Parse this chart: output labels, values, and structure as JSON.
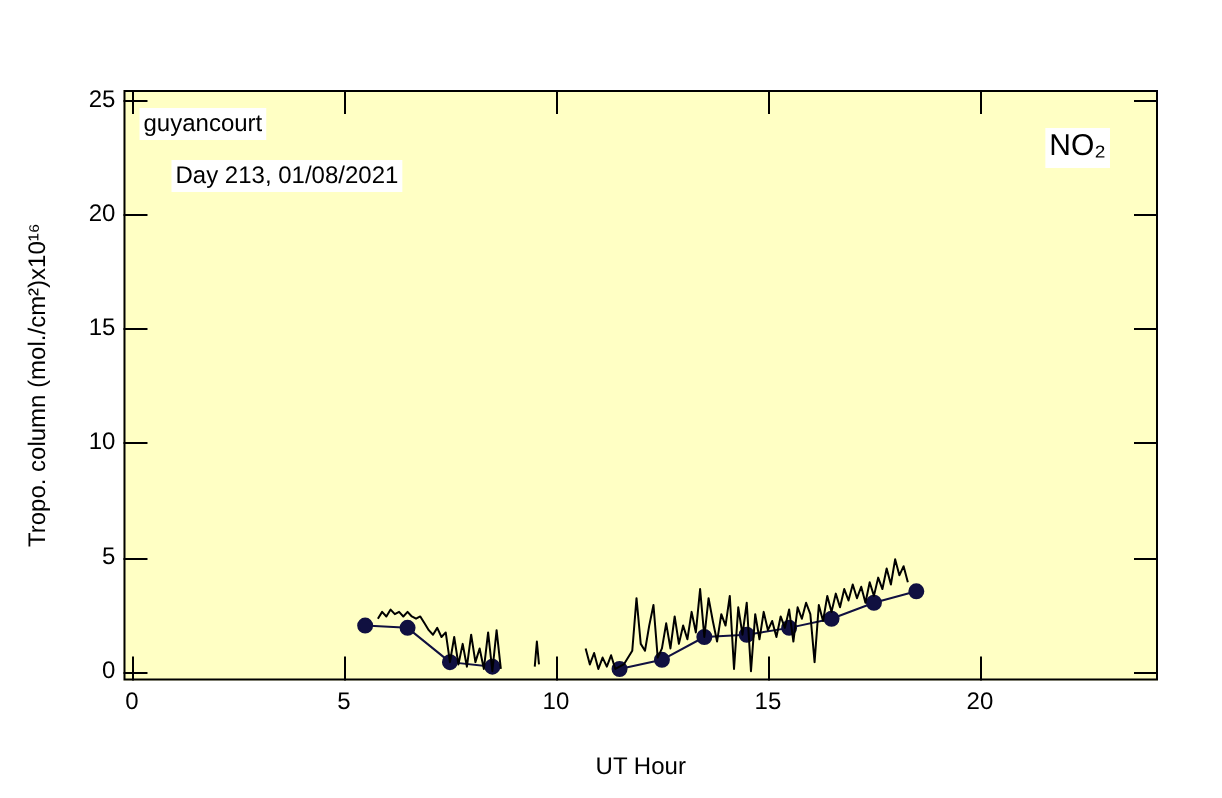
{
  "chart_data": {
    "type": "line",
    "xlabel": "UT Hour",
    "ylabel": "Tropo. column (mol./cm²)x10¹⁶",
    "annotations": [
      "guyancourt",
      "Day 213, 01/08/2021",
      "NO₂"
    ],
    "xlim": [
      -0.2,
      24.2
    ],
    "xticks": [
      0,
      5,
      10,
      15,
      20
    ],
    "ylim": [
      -0.4,
      25.45
    ],
    "yticks": [
      0,
      5,
      10,
      15,
      20,
      25
    ],
    "grid": false,
    "legend": false,
    "line_style": "solid",
    "series": [
      {
        "color": "#000000",
        "marker": "none",
        "x": [
          5.8,
          5.9,
          6.0,
          6.1,
          6.2,
          6.3,
          6.4,
          6.5,
          6.6,
          6.7,
          6.8,
          6.9,
          7.0,
          7.1,
          7.2,
          7.3,
          7.4,
          7.5,
          7.6,
          7.7,
          7.8,
          7.9,
          8.0,
          8.1,
          8.2,
          8.3,
          8.4,
          8.5,
          8.6,
          8.7,
          9.0,
          9.5,
          9.55,
          9.6,
          10.0,
          10.7,
          10.8,
          10.9,
          11.0,
          11.1,
          11.2,
          11.3,
          11.4,
          11.6,
          11.8,
          11.9,
          12.0,
          12.1,
          12.2,
          12.3,
          12.4,
          12.5,
          12.6,
          12.7,
          12.8,
          12.9,
          13.0,
          13.1,
          13.2,
          13.3,
          13.4,
          13.5,
          13.6,
          13.7,
          13.8,
          13.9,
          14.0,
          14.1,
          14.2,
          14.3,
          14.4,
          14.5,
          14.6,
          14.7,
          14.8,
          14.9,
          15.0,
          15.1,
          15.2,
          15.3,
          15.4,
          15.5,
          15.6,
          15.7,
          15.8,
          15.9,
          16.0,
          16.1,
          16.2,
          16.3,
          16.4,
          16.5,
          16.6,
          16.7,
          16.8,
          16.9,
          17.0,
          17.1,
          17.2,
          17.3,
          17.4,
          17.5,
          17.6,
          17.7,
          17.8,
          17.9,
          18.0,
          18.1,
          18.2,
          18.3
        ],
        "values": [
          2.3,
          2.6,
          2.4,
          2.7,
          2.5,
          2.6,
          2.4,
          2.6,
          2.4,
          2.3,
          2.4,
          2.1,
          1.8,
          1.6,
          1.9,
          1.5,
          1.7,
          0.4,
          1.5,
          0.3,
          1.2,
          0.2,
          1.6,
          0.4,
          1.0,
          0.1,
          1.7,
          0.0,
          1.8,
          0.1,
          null,
          0.2,
          1.3,
          0.3,
          null,
          1.0,
          0.3,
          0.8,
          0.1,
          0.6,
          0.2,
          0.7,
          0.1,
          0.3,
          0.9,
          3.2,
          1.2,
          0.9,
          2.0,
          2.9,
          0.6,
          1.0,
          2.1,
          1.0,
          2.4,
          1.2,
          2.0,
          1.4,
          2.6,
          1.7,
          3.6,
          1.5,
          3.2,
          2.2,
          1.3,
          2.5,
          2.0,
          3.3,
          0.1,
          2.8,
          1.6,
          3.0,
          0.0,
          2.5,
          1.4,
          2.6,
          1.8,
          2.2,
          1.5,
          2.4,
          1.9,
          2.7,
          1.3,
          2.8,
          2.3,
          3.0,
          2.5,
          0.4,
          2.9,
          2.2,
          3.3,
          2.6,
          3.4,
          2.8,
          3.6,
          3.1,
          3.8,
          3.2,
          3.7,
          3.0,
          3.9,
          3.3,
          4.1,
          3.6,
          4.5,
          3.8,
          4.9,
          4.2,
          4.6,
          3.9
        ]
      },
      {
        "color": "#101040",
        "marker": "circle",
        "x": [
          5.5,
          6.5,
          7.5,
          8.5,
          10.0,
          11.5,
          12.5,
          13.5,
          14.5,
          15.5,
          16.5,
          17.5,
          18.5
        ],
        "values": [
          2.0,
          1.9,
          0.4,
          0.2,
          null,
          0.1,
          0.5,
          1.5,
          1.6,
          1.9,
          2.3,
          3.0,
          3.5
        ]
      }
    ]
  }
}
